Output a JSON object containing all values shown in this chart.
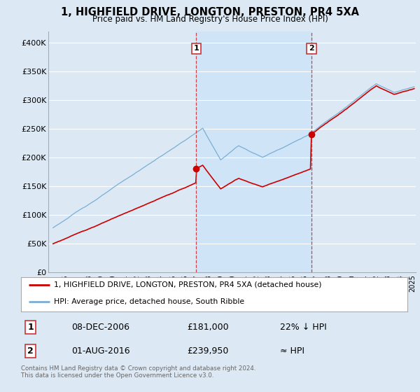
{
  "title": "1, HIGHFIELD DRIVE, LONGTON, PRESTON, PR4 5XA",
  "subtitle": "Price paid vs. HM Land Registry's House Price Index (HPI)",
  "background_color": "#dce9f5",
  "plot_bg_color": "#dce9f5",
  "shaded_bg_color": "#d0e4f7",
  "legend_line1": "1, HIGHFIELD DRIVE, LONGTON, PRESTON, PR4 5XA (detached house)",
  "legend_line2": "HPI: Average price, detached house, South Ribble",
  "footer": "Contains HM Land Registry data © Crown copyright and database right 2024.\nThis data is licensed under the Open Government Licence v3.0.",
  "transaction1_date": "08-DEC-2006",
  "transaction1_price": "£181,000",
  "transaction1_hpi": "22% ↓ HPI",
  "transaction2_date": "01-AUG-2016",
  "transaction2_price": "£239,950",
  "transaction2_hpi": "≈ HPI",
  "hpi_color": "#7aaed4",
  "price_color": "#cc0000",
  "vline_color": "#cc3333",
  "ylim": [
    0,
    420000
  ],
  "yticks": [
    0,
    50000,
    100000,
    150000,
    200000,
    250000,
    300000,
    350000,
    400000
  ],
  "ytick_labels": [
    "£0",
    "£50K",
    "£100K",
    "£150K",
    "£200K",
    "£250K",
    "£300K",
    "£350K",
    "£400K"
  ],
  "t1_year": 2006.96,
  "t2_year": 2016.58,
  "t1_price": 181000,
  "t2_price": 239950
}
